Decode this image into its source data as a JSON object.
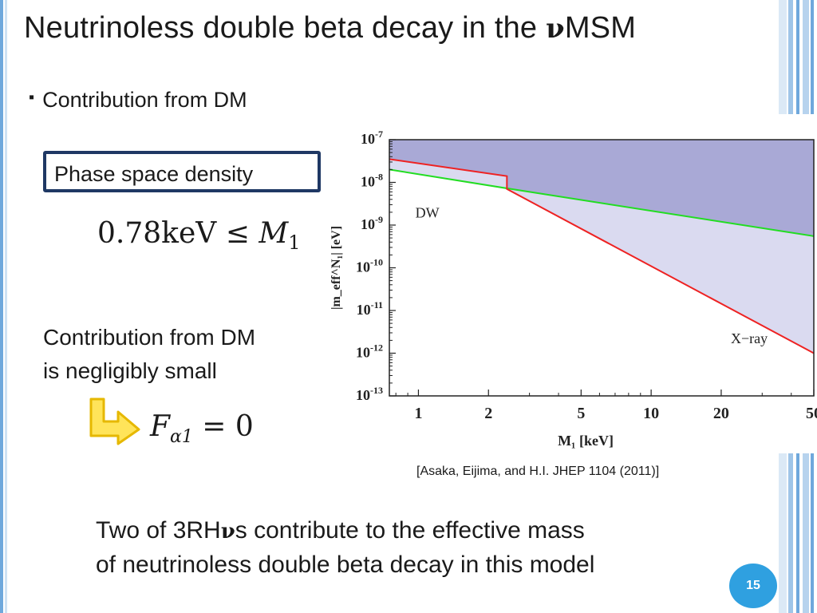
{
  "slide": {
    "title_prefix": "Neutrinoless double beta decay in the ",
    "title_nu": "ν",
    "title_suffix": "MSM",
    "bullet_symbol": "▪",
    "bullet_text": "Contribution from DM",
    "phase_box_label": "Phase space density",
    "formula_1": {
      "lhs": "0.78keV ≤ ",
      "var": "M",
      "sub": "1"
    },
    "negligible_line1": "Contribution from DM",
    "negligible_line2": "is negligibly small",
    "formula_2": {
      "var": "F",
      "sub": "α1",
      "rhs": " = 0"
    },
    "citation": "[Asaka, Eijima, and H.I. JHEP 1104 (2011)]",
    "conclusion_line1_prefix": "Two of 3RH",
    "conclusion_line1_nu": "ν",
    "conclusion_line1_suffix": "s contribute to the effective mass",
    "conclusion_line2": "of neutrinoless double beta decay in this model",
    "page_number": "15"
  },
  "colors": {
    "accent_blue": "#2fa0e0",
    "box_border": "#1f3864",
    "arrow_fill": "#ffe45a",
    "arrow_stroke": "#e6b800",
    "excluded_dark": "#a9a9d6",
    "excluded_light": "#dadaf0",
    "dw_line": "#22dd22",
    "xray_line": "#ee2222"
  },
  "icons": {
    "arrow": "bent-arrow-right-icon"
  },
  "chart_data": {
    "type": "line",
    "xscale": "log",
    "yscale": "log",
    "xlim": [
      0.75,
      50
    ],
    "ylim": [
      1e-13,
      1e-07
    ],
    "x_ticks": [
      1,
      2,
      5,
      10,
      20,
      50
    ],
    "x_tick_labels": [
      "1",
      "2",
      "5",
      "10",
      "20",
      "50"
    ],
    "y_ticks": [
      1e-07,
      1e-08,
      1e-09,
      1e-10,
      1e-11,
      1e-12,
      1e-13
    ],
    "y_tick_exponents": [
      "-7",
      "-8",
      "-9",
      "-10",
      "-11",
      "-12",
      "-13"
    ],
    "y_tick_base": "10",
    "xlabel": "M₁ [keV]",
    "ylabel": "|m_eff^N₁| [eV]",
    "annotations": [
      {
        "text": "DW",
        "x": 0.97,
        "y": 1.5e-09
      },
      {
        "text": "X−ray",
        "x": 22,
        "y": 1.7e-12
      }
    ],
    "series": [
      {
        "name": "DW",
        "color": "#22dd22",
        "x": [
          0.75,
          2.5,
          50
        ],
        "y": [
          2e-08,
          7e-09,
          5.5e-10
        ]
      },
      {
        "name": "X-ray",
        "color": "#ee2222",
        "x": [
          0.75,
          2.4,
          2.4,
          50
        ],
        "y": [
          3.5e-08,
          1.4e-08,
          7e-09,
          1e-12
        ]
      }
    ],
    "grid": false,
    "legend": "none"
  }
}
